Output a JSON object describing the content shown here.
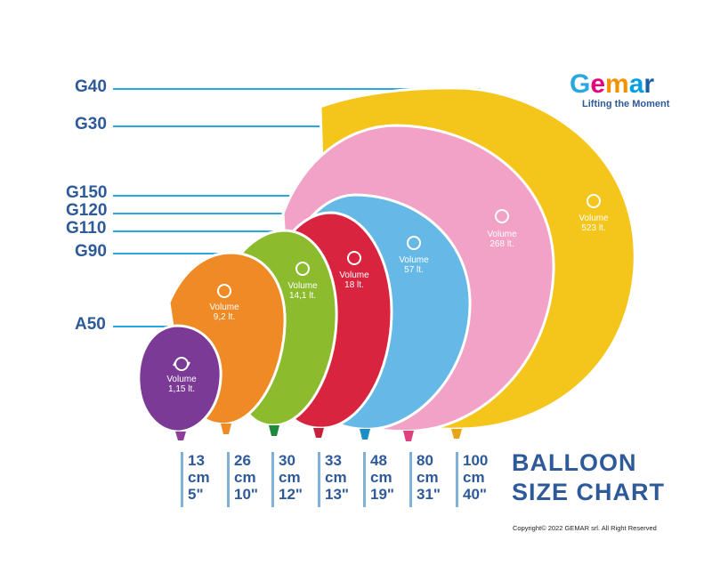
{
  "brand": {
    "name_letters": [
      "G",
      "e",
      "m",
      "a",
      "r"
    ],
    "tagline": "Lifting the Moment",
    "letter_colors": [
      "#2aa7df",
      "#e5007e",
      "#f39200",
      "#009fe3",
      "#1b5ea6"
    ]
  },
  "title": {
    "line1": "BALLOON",
    "line2": "SIZE CHART"
  },
  "copyright": "Copyright© 2022 GEMAR srl. All Right Reserved",
  "size_labels": [
    "G40",
    "G30",
    "G150",
    "G120",
    "G110",
    "G90",
    "A50"
  ],
  "line_color": "#2aa7df",
  "balloons": [
    {
      "code": "A50",
      "vol_label": "Volume",
      "vol_value": "1,15 lt.",
      "cm": "13",
      "cm_unit": "cm",
      "inch": "5\"",
      "color": "#7b3a96",
      "knot": "#8e3d9d"
    },
    {
      "code": "G90",
      "vol_label": "Volume",
      "vol_value": "9,2 lt.",
      "cm": "26",
      "cm_unit": "cm",
      "inch": "10\"",
      "color": "#f08a24",
      "knot": "#f08a24"
    },
    {
      "code": "G110",
      "vol_label": "Volume",
      "vol_value": "14,1 lt.",
      "cm": "30",
      "cm_unit": "cm",
      "inch": "12\"",
      "color": "#8cbc2e",
      "knot": "#1f8a3c"
    },
    {
      "code": "G120",
      "vol_label": "Volume",
      "vol_value": "18 lt.",
      "cm": "33",
      "cm_unit": "cm",
      "inch": "13\"",
      "color": "#d8243f",
      "knot": "#c81f3b"
    },
    {
      "code": "G150",
      "vol_label": "Volume",
      "vol_value": "57 lt.",
      "cm": "48",
      "cm_unit": "cm",
      "inch": "19\"",
      "color": "#66b9e6",
      "knot": "#1d8ec4"
    },
    {
      "code": "G30",
      "vol_label": "Volume",
      "vol_value": "268 lt.",
      "cm": "80",
      "cm_unit": "cm",
      "inch": "31\"",
      "color": "#f2a2c6",
      "knot": "#e0407e"
    },
    {
      "code": "G40",
      "vol_label": "Volume",
      "vol_value": "523 lt.",
      "cm": "100",
      "cm_unit": "cm",
      "inch": "40\"",
      "color": "#f4c51b",
      "knot": "#e8a318"
    }
  ]
}
